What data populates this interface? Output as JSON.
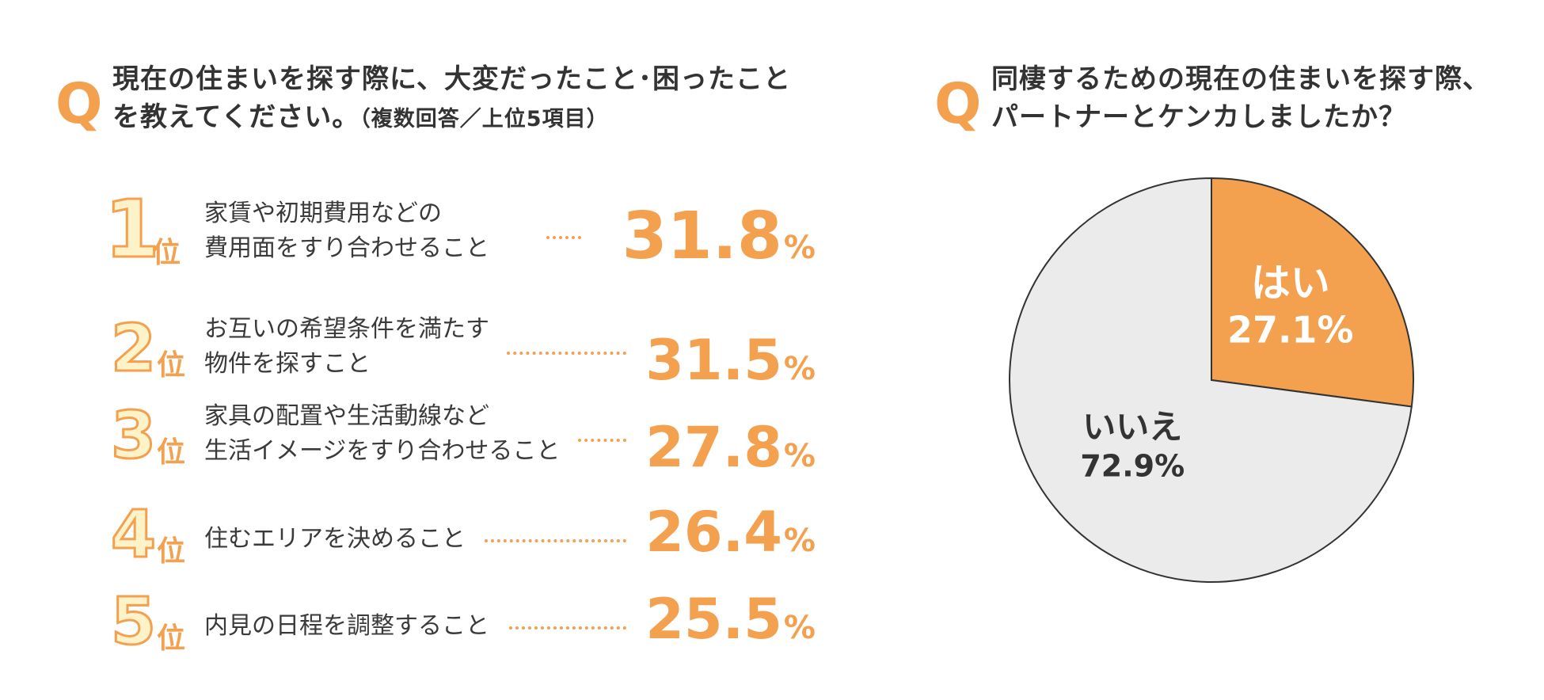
{
  "left_panel": {
    "q_mark": "Q",
    "title_lines": [
      "現在の住まいを探す際に、大変だったこと･困ったこと",
      "を教えてください。"
    ],
    "title_note": "（複数回答／上位5項目）",
    "rank_suffix": "位",
    "ranking": [
      {
        "rank": "1",
        "lines": [
          "家賃や初期費用などの",
          "費用面をすり合わせること"
        ],
        "value": "31.8",
        "unit": "%"
      },
      {
        "rank": "2",
        "lines": [
          "お互いの希望条件を満たす",
          "物件を探すこと"
        ],
        "value": "31.5",
        "unit": "%"
      },
      {
        "rank": "3",
        "lines": [
          "家具の配置や生活動線など",
          "生活イメージをすり合わせること"
        ],
        "value": "27.8",
        "unit": "%"
      },
      {
        "rank": "4",
        "lines": [
          "住むエリアを決めること"
        ],
        "value": "26.4",
        "unit": "%"
      },
      {
        "rank": "5",
        "lines": [
          "内見の日程を調整すること"
        ],
        "value": "25.5",
        "unit": "%"
      }
    ]
  },
  "right_panel": {
    "q_mark": "Q",
    "title_lines": [
      "同棲するための現在の住まいを探す際、",
      "パートナーとケンカしましたか？"
    ]
  },
  "colors": {
    "accent": "#f3a04f",
    "rank_fill": "#fdf2c8",
    "pie_no": "#ebebeb",
    "pie_outline": "#333333",
    "text": "#3a3a3a"
  },
  "chart_data": [
    {
      "type": "bar",
      "categories": [
        "家賃や初期費用などの費用面をすり合わせること",
        "お互いの希望条件を満たす物件を探すこと",
        "家具の配置や生活動線など生活イメージをすり合わせること",
        "住むエリアを決めること",
        "内見の日程を調整すること"
      ],
      "values": [
        31.8,
        31.5,
        27.8,
        26.4,
        25.5
      ]
    },
    {
      "type": "pie",
      "slices": [
        {
          "label": "はい",
          "value": 27.1,
          "display": "27.1%"
        },
        {
          "label": "いいえ",
          "value": 72.9,
          "display": "72.9%"
        }
      ]
    }
  ]
}
